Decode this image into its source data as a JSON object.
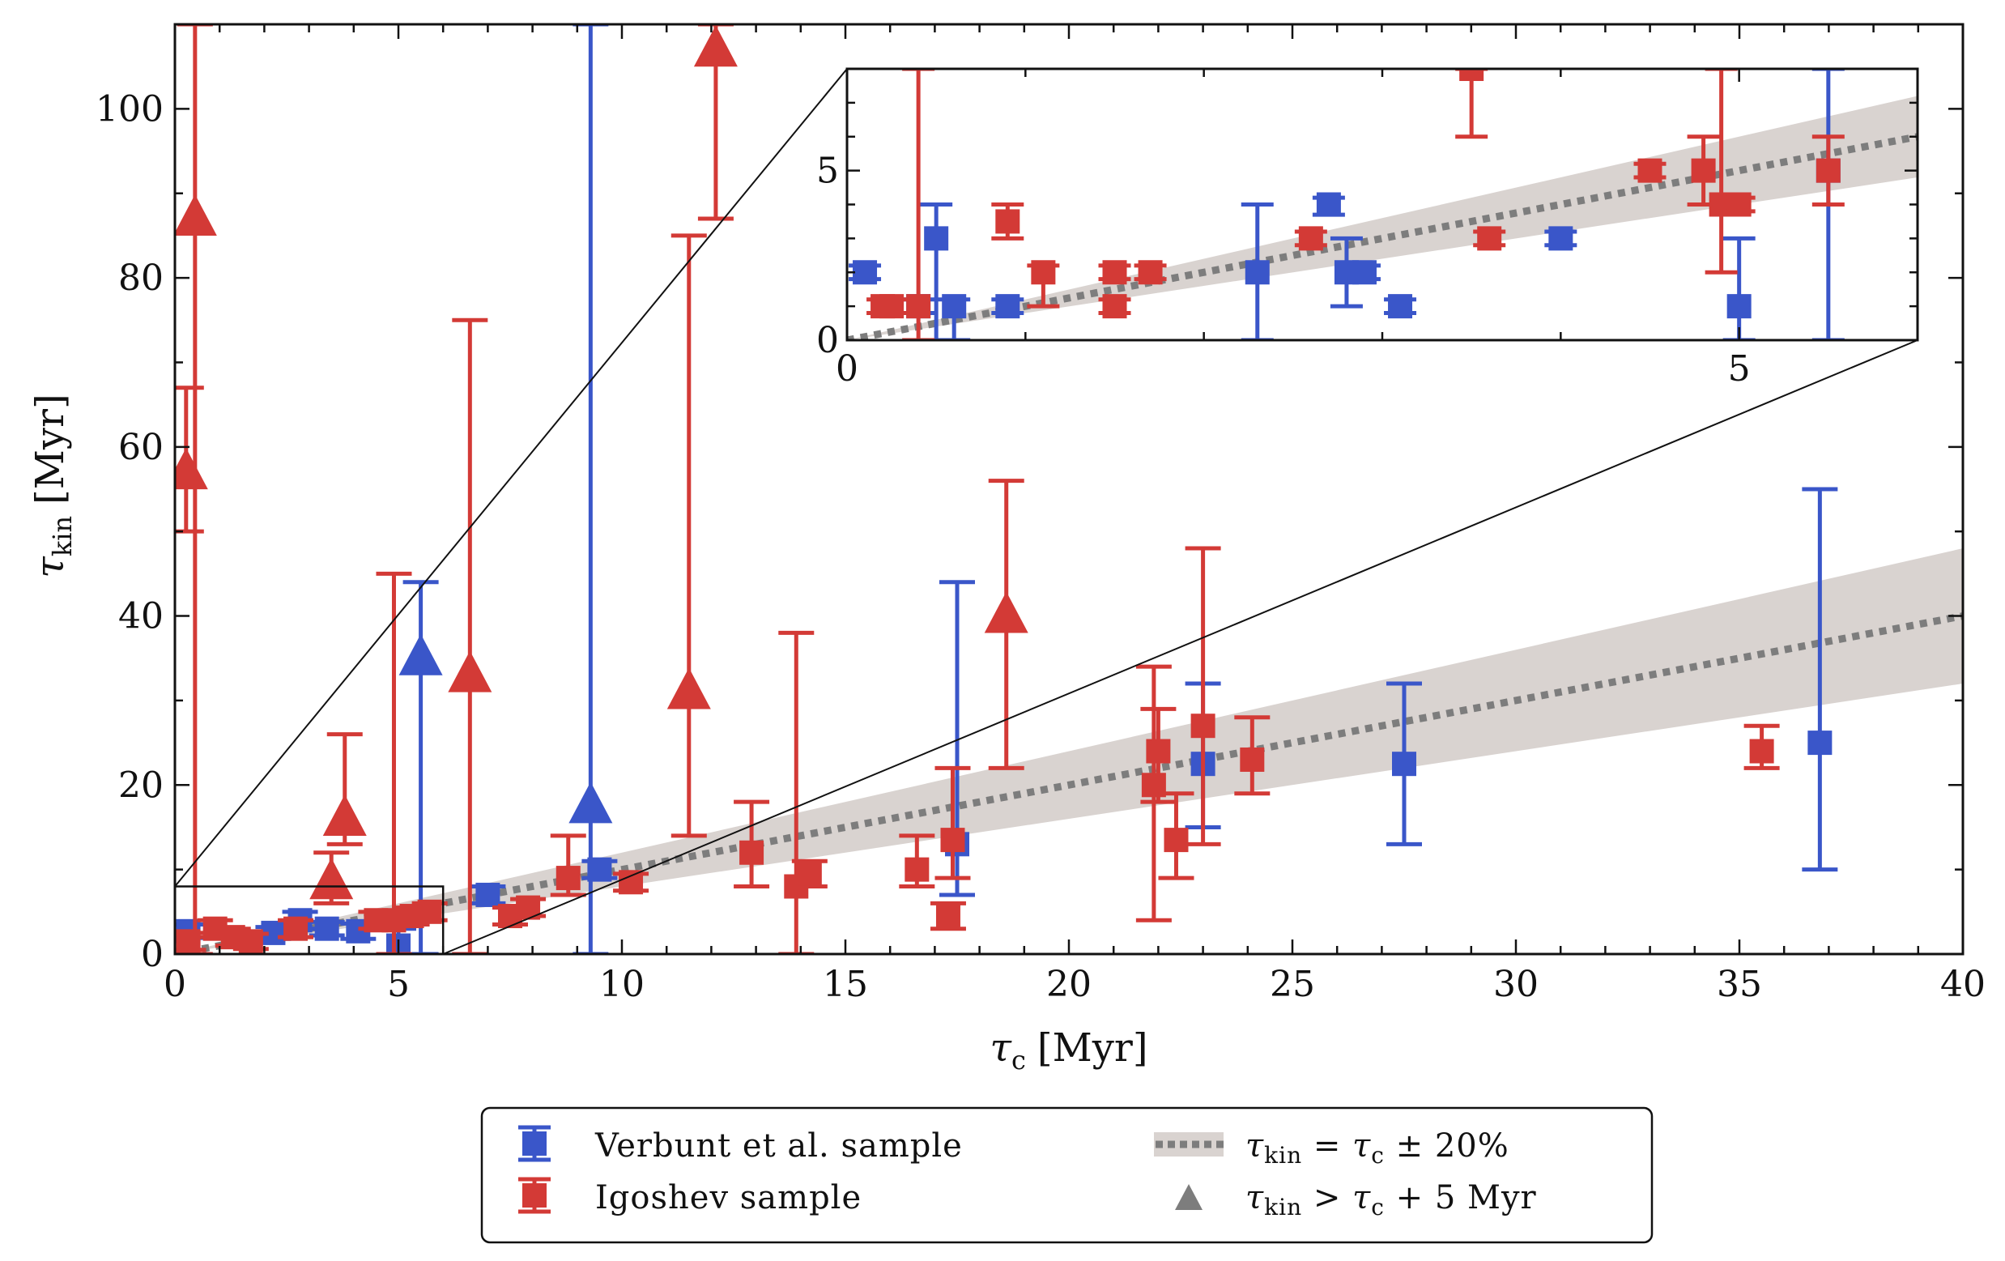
{
  "chart_data": {
    "type": "scatter",
    "xlabel": "τ",
    "xlabel_sub": "c",
    "xlabel_unit": "[Myr]",
    "ylabel": "τ",
    "ylabel_sub": "kin",
    "ylabel_unit": "[Myr]",
    "xlim": [
      0,
      40
    ],
    "ylim": [
      0,
      110
    ],
    "xticks": [
      0,
      5,
      10,
      15,
      20,
      25,
      30,
      35,
      40
    ],
    "yticks": [
      0,
      20,
      40,
      60,
      80,
      100
    ],
    "band": {
      "name": "τkin = τc ± 20%",
      "slope": 1.0,
      "rel_width": 0.2,
      "color": "#d9d3d0"
    },
    "colors": {
      "verbunt": "#3a56c9",
      "igoshev": "#d33a36",
      "identity": "#7d7d7d"
    },
    "series": [
      {
        "name": "Verbunt et al. sample",
        "key": "verbunt",
        "points": [
          {
            "x": 0.3,
            "y": 2.7,
            "lo": 1.9,
            "hi": 3.5
          },
          {
            "x": 2.2,
            "y": 2.5,
            "lo": 1.8,
            "hi": 3.2
          },
          {
            "x": 2.8,
            "y": 4.0,
            "lo": 3.0,
            "hi": 5.0
          },
          {
            "x": 3.4,
            "y": 3.0,
            "lo": 2.2,
            "hi": 3.8
          },
          {
            "x": 4.1,
            "y": 2.7,
            "lo": 1.8,
            "hi": 3.6
          },
          {
            "x": 5.0,
            "y": 1.0,
            "lo": 0.0,
            "hi": 3.0
          },
          {
            "x": 5.5,
            "y": 35,
            "lo": 0,
            "hi": 44,
            "tri": true
          },
          {
            "x": 7.0,
            "y": 7.0,
            "lo": 6.0,
            "hi": 8.0
          },
          {
            "x": 9.3,
            "y": 17.5,
            "lo": 0,
            "hi": 110,
            "tri": true
          },
          {
            "x": 9.5,
            "y": 10.0,
            "lo": 9.0,
            "hi": 11.0
          },
          {
            "x": 17.5,
            "y": 13,
            "lo": 7,
            "hi": 44
          },
          {
            "x": 23.0,
            "y": 22.5,
            "lo": 15,
            "hi": 32
          },
          {
            "x": 27.5,
            "y": 22.5,
            "lo": 13,
            "hi": 32
          },
          {
            "x": 36.8,
            "y": 25,
            "lo": 10,
            "hi": 55
          }
        ]
      },
      {
        "name": "Igoshev sample",
        "key": "igoshev",
        "points": [
          {
            "x": 0.25,
            "y": 57,
            "lo": 50,
            "hi": 67,
            "tri": true
          },
          {
            "x": 0.45,
            "y": 87,
            "lo": 0,
            "hi": 110,
            "tri": true
          },
          {
            "x": 0.3,
            "y": 1.5,
            "lo": 0.5,
            "hi": 2.5
          },
          {
            "x": 0.9,
            "y": 3.0,
            "lo": 2.0,
            "hi": 4.0
          },
          {
            "x": 1.3,
            "y": 2.0,
            "lo": 1.0,
            "hi": 3.0
          },
          {
            "x": 1.7,
            "y": 1.5,
            "lo": 0.6,
            "hi": 2.4
          },
          {
            "x": 2.7,
            "y": 3.0,
            "lo": 2.0,
            "hi": 4.0
          },
          {
            "x": 3.5,
            "y": 8.5,
            "lo": 6.0,
            "hi": 12.0,
            "tri": true
          },
          {
            "x": 3.8,
            "y": 16,
            "lo": 13,
            "hi": 26,
            "tri": true
          },
          {
            "x": 4.5,
            "y": 4.0,
            "lo": 3.0,
            "hi": 5.0
          },
          {
            "x": 4.9,
            "y": 4.0,
            "lo": 0,
            "hi": 45
          },
          {
            "x": 5.3,
            "y": 4.5,
            "lo": 3.5,
            "hi": 5.5
          },
          {
            "x": 5.7,
            "y": 5.0,
            "lo": 4.0,
            "hi": 6.0
          },
          {
            "x": 6.6,
            "y": 33,
            "lo": 0,
            "hi": 75,
            "tri": true
          },
          {
            "x": 7.5,
            "y": 4.5,
            "lo": 3.5,
            "hi": 5.5
          },
          {
            "x": 7.9,
            "y": 5.5,
            "lo": 4.5,
            "hi": 6.5
          },
          {
            "x": 8.8,
            "y": 9.0,
            "lo": 7.0,
            "hi": 14.0
          },
          {
            "x": 10.2,
            "y": 8.5,
            "lo": 7.5,
            "hi": 9.5
          },
          {
            "x": 11.5,
            "y": 31,
            "lo": 14,
            "hi": 85,
            "tri": true
          },
          {
            "x": 12.1,
            "y": 107,
            "lo": 87,
            "hi": 110,
            "tri": true
          },
          {
            "x": 12.9,
            "y": 12,
            "lo": 8,
            "hi": 18
          },
          {
            "x": 13.9,
            "y": 8,
            "lo": 0,
            "hi": 38
          },
          {
            "x": 14.2,
            "y": 9.5,
            "lo": 8,
            "hi": 11
          },
          {
            "x": 16.6,
            "y": 10,
            "lo": 8,
            "hi": 14
          },
          {
            "x": 17.3,
            "y": 4.5,
            "lo": 3,
            "hi": 6
          },
          {
            "x": 17.4,
            "y": 13.5,
            "lo": 9,
            "hi": 22
          },
          {
            "x": 18.6,
            "y": 40,
            "lo": 22,
            "hi": 56,
            "tri": true
          },
          {
            "x": 21.9,
            "y": 20,
            "lo": 4,
            "hi": 34
          },
          {
            "x": 22.0,
            "y": 24,
            "lo": 18,
            "hi": 29
          },
          {
            "x": 22.4,
            "y": 13.5,
            "lo": 9,
            "hi": 19
          },
          {
            "x": 23.0,
            "y": 27,
            "lo": 13,
            "hi": 48
          },
          {
            "x": 24.1,
            "y": 23,
            "lo": 19,
            "hi": 28
          },
          {
            "x": 35.5,
            "y": 24,
            "lo": 22,
            "hi": 27
          }
        ]
      }
    ],
    "inset": {
      "xlim": [
        0,
        6
      ],
      "ylim": [
        0,
        8
      ],
      "xticks": [
        0,
        5
      ],
      "yticks": [
        0,
        5
      ],
      "zoom_box": {
        "x0": 0,
        "x1": 6,
        "y0": 0,
        "y1": 8
      },
      "verbunt": [
        {
          "x": 0.1,
          "y": 2.0,
          "lo": 1.8,
          "hi": 2.2
        },
        {
          "x": 0.4,
          "y": 1.0,
          "lo": 0.8,
          "hi": 1.2
        },
        {
          "x": 0.5,
          "y": 3.0,
          "lo": 0.0,
          "hi": 4.0
        },
        {
          "x": 0.6,
          "y": 1.0,
          "lo": 0.0,
          "hi": 1.2
        },
        {
          "x": 0.9,
          "y": 1.0,
          "lo": 0.8,
          "hi": 1.2
        },
        {
          "x": 2.3,
          "y": 2.0,
          "lo": 0.0,
          "hi": 4.0
        },
        {
          "x": 2.7,
          "y": 4.0,
          "lo": 3.7,
          "hi": 4.2
        },
        {
          "x": 2.8,
          "y": 2.0,
          "lo": 1.0,
          "hi": 3.0
        },
        {
          "x": 2.9,
          "y": 2.0,
          "lo": 1.8,
          "hi": 2.2
        },
        {
          "x": 3.1,
          "y": 1.0,
          "lo": 0.8,
          "hi": 1.2
        },
        {
          "x": 4.0,
          "y": 3.0,
          "lo": 2.8,
          "hi": 3.2
        },
        {
          "x": 5.0,
          "y": 1.0,
          "lo": 0.0,
          "hi": 3.0
        },
        {
          "x": 5.5,
          "y": 5.0,
          "lo": 0.0,
          "hi": 8.0
        }
      ],
      "igoshev": [
        {
          "x": 0.2,
          "y": 1.0,
          "lo": 0.8,
          "hi": 1.2
        },
        {
          "x": 0.25,
          "y": 1.0,
          "lo": 0.8,
          "hi": 1.2
        },
        {
          "x": 0.4,
          "y": 1.0,
          "lo": 0.0,
          "hi": 8.0
        },
        {
          "x": 0.9,
          "y": 3.5,
          "lo": 3.0,
          "hi": 4.0
        },
        {
          "x": 1.1,
          "y": 2.0,
          "lo": 1.0,
          "hi": 2.2
        },
        {
          "x": 1.5,
          "y": 2.0,
          "lo": 1.8,
          "hi": 2.2
        },
        {
          "x": 1.5,
          "y": 1.0,
          "lo": 0.8,
          "hi": 1.2
        },
        {
          "x": 1.7,
          "y": 2.0,
          "lo": 1.8,
          "hi": 2.2
        },
        {
          "x": 2.6,
          "y": 3.0,
          "lo": 2.8,
          "hi": 3.2
        },
        {
          "x": 3.5,
          "y": 8.0,
          "lo": 6.0,
          "hi": 8.0
        },
        {
          "x": 3.6,
          "y": 3.0,
          "lo": 2.8,
          "hi": 3.2
        },
        {
          "x": 4.5,
          "y": 5.0,
          "lo": 4.8,
          "hi": 5.2
        },
        {
          "x": 4.8,
          "y": 5.0,
          "lo": 4.0,
          "hi": 6.0
        },
        {
          "x": 4.9,
          "y": 4.0,
          "lo": 2.0,
          "hi": 8.0
        },
        {
          "x": 5.0,
          "y": 4.0,
          "lo": 3.8,
          "hi": 4.2
        },
        {
          "x": 5.5,
          "y": 5.0,
          "lo": 4.0,
          "hi": 6.0
        }
      ]
    },
    "legend": {
      "items": [
        {
          "label": "Verbunt et al. sample"
        },
        {
          "label": "Igoshev sample"
        },
        {
          "label": "τ",
          "math": "kin = τc ± 20%"
        },
        {
          "label": "τ",
          "math": "kin > τc + 5 Myr"
        }
      ],
      "band_label": {
        "t1": "τ",
        "s1": "kin",
        "op": " = ",
        "t2": "τ",
        "s2": "c",
        "tail": " ± 20%"
      },
      "tri_label": {
        "t1": "τ",
        "s1": "kin",
        "op": " > ",
        "t2": "τ",
        "s2": "c",
        "tail": " + 5 Myr"
      },
      "verbunt_label": "Verbunt et al. sample",
      "igoshev_label": "Igoshev sample",
      "placement": "bottom-center"
    }
  }
}
